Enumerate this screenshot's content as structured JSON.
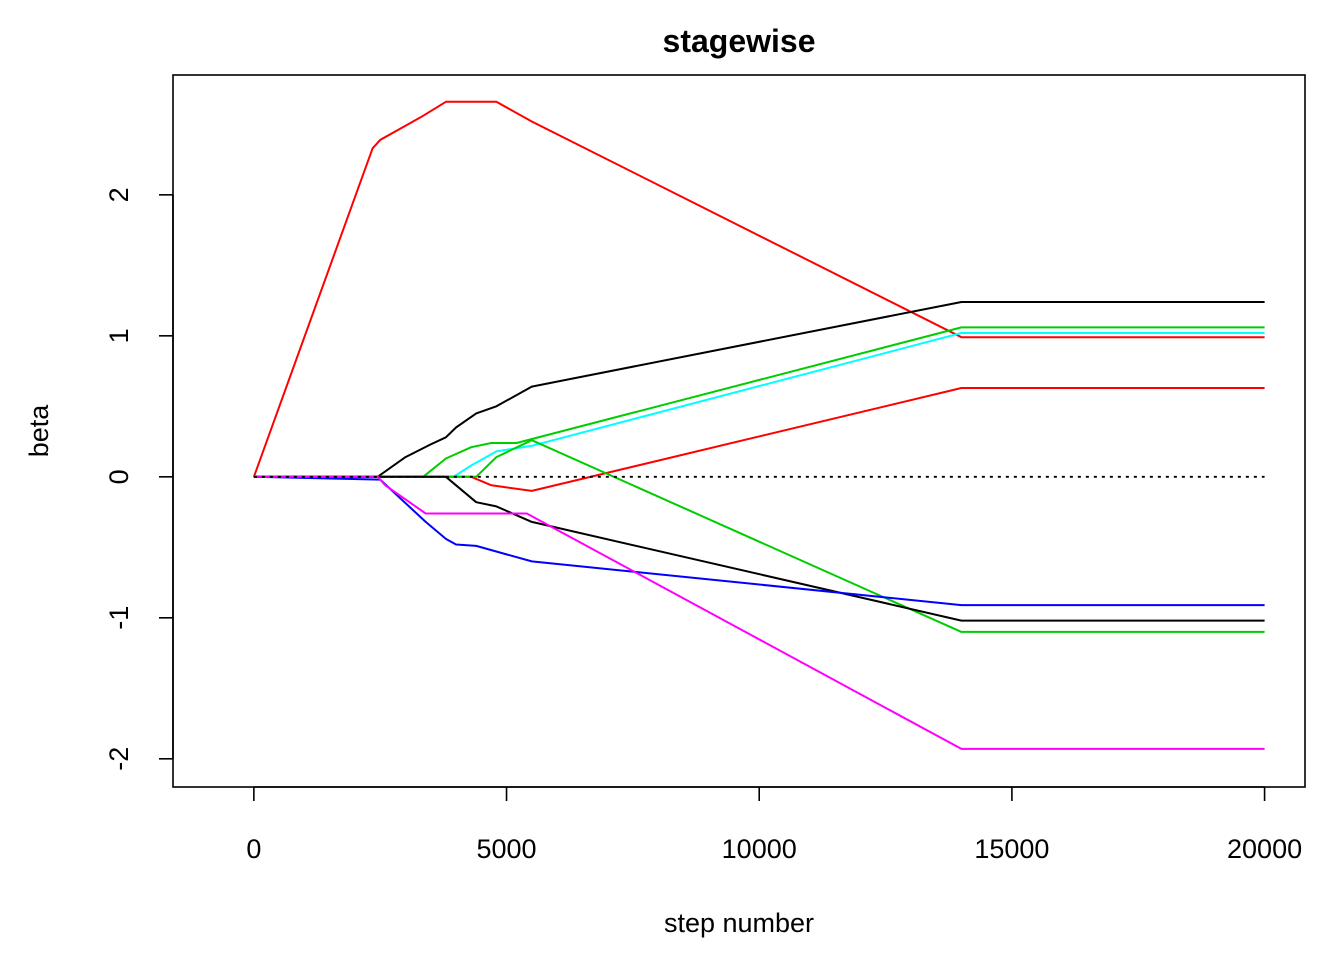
{
  "chart_data": {
    "type": "line",
    "title": "stagewise",
    "xlabel": "step number",
    "ylabel": "beta",
    "xlim": [
      -1600,
      20800
    ],
    "ylim": [
      -2.2,
      2.85
    ],
    "xticks": [
      0,
      5000,
      10000,
      15000,
      20000
    ],
    "xtick_labels": [
      "0",
      "5000",
      "10000",
      "15000",
      "20000"
    ],
    "yticks": [
      -2,
      -1,
      0,
      1,
      2
    ],
    "ytick_labels": [
      "-2",
      "-1",
      "0",
      "1",
      "2"
    ],
    "reference_line": {
      "y": 0,
      "style": "dotted"
    },
    "grid": false,
    "legend": "none",
    "series": [
      {
        "color": "#ff0000",
        "x": [
          0,
          2350,
          2500,
          3300,
          3800,
          4800,
          5500,
          14000,
          20000
        ],
        "y": [
          0,
          2.33,
          2.39,
          2.55,
          2.66,
          2.66,
          2.52,
          0.99,
          0.99
        ]
      },
      {
        "color": "#000000",
        "x": [
          0,
          2450,
          3000,
          3500,
          3800,
          4000,
          4400,
          4800,
          5500,
          14000,
          20000
        ],
        "y": [
          0,
          0,
          0.14,
          0.23,
          0.28,
          0.35,
          0.45,
          0.5,
          0.64,
          1.24,
          1.24
        ]
      },
      {
        "color": "#00cd00",
        "x": [
          0,
          3350,
          3800,
          4300,
          4700,
          5200,
          14000,
          20000
        ],
        "y": [
          0,
          0,
          0.13,
          0.21,
          0.24,
          0.24,
          1.06,
          1.06
        ]
      },
      {
        "color": "#00ffff",
        "x": [
          0,
          3950,
          4300,
          4800,
          5500,
          14000,
          20000
        ],
        "y": [
          0,
          0,
          0.08,
          0.18,
          0.22,
          1.02,
          1.02
        ]
      },
      {
        "color": "#ff0000",
        "x": [
          0,
          4300,
          4700,
          5500,
          14000,
          20000
        ],
        "y": [
          0,
          0,
          -0.06,
          -0.1,
          0.63,
          0.63
        ]
      },
      {
        "color": "#00cd00",
        "x": [
          0,
          4400,
          4800,
          5500,
          14000,
          20000
        ],
        "y": [
          0,
          0,
          0.14,
          0.26,
          -1.1,
          -1.1
        ]
      },
      {
        "color": "#000000",
        "x": [
          0,
          3800,
          4400,
          4800,
          5500,
          14000,
          20000
        ],
        "y": [
          0,
          0,
          -0.18,
          -0.21,
          -0.32,
          -1.02,
          -1.02
        ]
      },
      {
        "color": "#0000ff",
        "x": [
          0,
          2500,
          3400,
          3800,
          4000,
          4400,
          5500,
          14000,
          20000
        ],
        "y": [
          0,
          -0.02,
          -0.32,
          -0.44,
          -0.48,
          -0.49,
          -0.6,
          -0.91,
          -0.91
        ]
      },
      {
        "color": "#ff00ff",
        "x": [
          0,
          2450,
          2600,
          3400,
          4800,
          5400,
          14000,
          20000
        ],
        "y": [
          0,
          0,
          -0.06,
          -0.26,
          -0.26,
          -0.26,
          -1.93,
          -1.93
        ]
      }
    ]
  }
}
